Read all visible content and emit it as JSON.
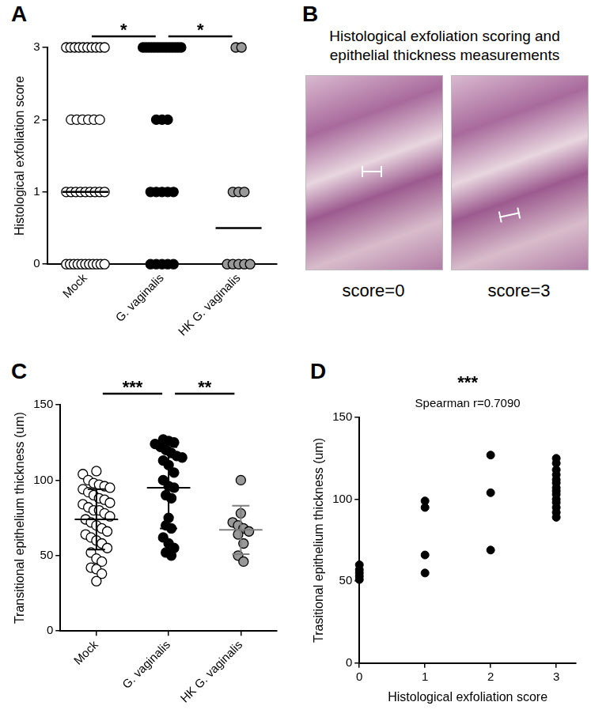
{
  "chart_data": [
    {
      "panel": "A",
      "type": "scatter",
      "categories": [
        "Mock",
        "G. vaginalis",
        "HK G. vaginalis"
      ],
      "ylabel": "Histological exfoliation score",
      "values": [
        [
          3,
          3,
          3,
          3,
          3,
          3,
          3,
          3,
          3,
          3,
          2,
          2,
          2,
          2,
          2,
          2,
          1,
          1,
          1,
          1,
          1,
          1,
          1,
          1,
          1,
          0,
          0,
          0,
          0,
          0,
          0,
          0,
          0,
          0,
          0,
          0
        ],
        [
          3,
          3,
          3,
          3,
          3,
          3,
          3,
          3,
          3,
          3,
          3,
          3,
          3,
          3,
          2,
          2,
          2,
          1,
          1,
          1,
          1,
          1,
          0,
          0,
          0,
          0,
          0
        ],
        [
          3,
          3,
          1,
          1,
          1,
          0,
          0,
          0,
          0,
          0
        ]
      ],
      "medians": [
        1,
        3,
        0.5
      ],
      "colors": [
        "#ffffff",
        "#000000",
        "#999999"
      ],
      "marker": "circle",
      "ylim": [
        0,
        3
      ],
      "yticks": [
        0,
        1,
        2,
        3
      ],
      "grid": false,
      "annotations": [
        {
          "text": "*",
          "from": "Mock",
          "to": "G. vaginalis"
        },
        {
          "text": "*",
          "from": "G. vaginalis",
          "to": "HK G. vaginalis"
        }
      ]
    },
    {
      "panel": "C",
      "type": "scatter",
      "categories": [
        "Mock",
        "G. vaginalis",
        "HK G. vaginalis"
      ],
      "ylabel": "Transitional epithelium thickness (um)",
      "values": [
        [
          106,
          104,
          100,
          98,
          97,
          96,
          95,
          94,
          92,
          90,
          88,
          87,
          85,
          84,
          82,
          80,
          80,
          78,
          76,
          74,
          72,
          70,
          68,
          66,
          64,
          62,
          60,
          58,
          55,
          52,
          48,
          46,
          42,
          41,
          38,
          33
        ],
        [
          127,
          126,
          125,
          124,
          122,
          120,
          118,
          116,
          115,
          113,
          110,
          105,
          100,
          96,
          95,
          90,
          88,
          75,
          70,
          68,
          62,
          58,
          55,
          52,
          50
        ],
        [
          100,
          78,
          72,
          70,
          68,
          66,
          64,
          58,
          50,
          46
        ]
      ],
      "means": [
        74,
        95,
        67
      ],
      "errors": [
        20,
        27,
        16
      ],
      "colors": [
        "#ffffff",
        "#000000",
        "#999999"
      ],
      "marker": "circle",
      "ylim": [
        0,
        150
      ],
      "yticks": [
        0,
        50,
        100,
        150
      ],
      "grid": false,
      "annotations": [
        {
          "text": "***",
          "from": "Mock",
          "to": "G. vaginalis"
        },
        {
          "text": "**",
          "from": "G. vaginalis",
          "to": "HK G. vaginalis"
        }
      ]
    },
    {
      "panel": "D",
      "type": "scatter",
      "xlabel": "Histological exfoliation score",
      "ylabel": "Trasitional epithelium thickness (um)",
      "x": [
        0,
        0,
        0,
        0,
        0,
        1,
        1,
        1,
        1,
        2,
        2,
        2,
        3,
        3,
        3,
        3,
        3,
        3,
        3,
        3,
        3,
        3,
        3,
        3,
        3,
        3
      ],
      "values": [
        51,
        53,
        55,
        57,
        60,
        55,
        66,
        95,
        99,
        69,
        104,
        127,
        89,
        92,
        95,
        98,
        100,
        103,
        105,
        107,
        110,
        112,
        115,
        118,
        122,
        125
      ],
      "color": "#000000",
      "marker": "circle",
      "xlim": [
        0,
        3.3
      ],
      "xticks": [
        0,
        1,
        2,
        3
      ],
      "ylim": [
        0,
        150
      ],
      "yticks": [
        0,
        50,
        100,
        150
      ],
      "grid": false,
      "annotations": [
        {
          "text": "***"
        },
        {
          "text": "Spearman r=0.7090"
        }
      ]
    }
  ],
  "panel_b": {
    "panel": "B",
    "title": [
      "Histological exfoliation scoring and",
      "epithelial thickness measurements"
    ],
    "images": [
      {
        "label": "score=0"
      },
      {
        "label": "score=3"
      }
    ]
  }
}
